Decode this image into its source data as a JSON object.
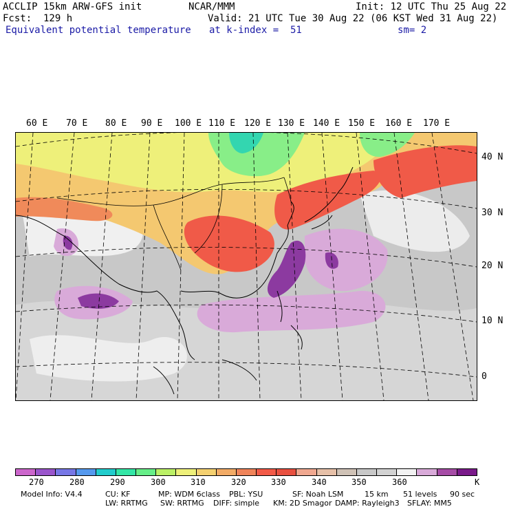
{
  "header": {
    "line1_left": "ACCLIP 15km ARW-GFS init",
    "line1_center": "NCAR/MMM",
    "line1_right": "Init: 12 UTC Thu 25 Aug 22",
    "line2_left": "Fcst:  129 h",
    "line2_right": "Valid: 21 UTC Tue 30 Aug 22 (06 KST Wed 31 Aug 22)",
    "line3_left": "Equivalent potential temperature",
    "line3_center": "at k-index =  51",
    "line3_right": "sm= 2"
  },
  "map": {
    "lon_labels": [
      "60 E",
      "70 E",
      "80 E",
      "90 E",
      "100 E",
      "110 E",
      "120 E",
      "130 E",
      "140 E",
      "150 E",
      "160 E",
      "170 E"
    ],
    "lat_labels": [
      "40 N",
      "30 N",
      "20 N",
      "10 N",
      "0"
    ],
    "field": "Equivalent potential temperature",
    "domain": "Asia / Western Pacific"
  },
  "colorbar": {
    "colors": [
      "#cc66cc",
      "#9a55cc",
      "#7777e6",
      "#5599ee",
      "#22cccc",
      "#33e6a6",
      "#66ee88",
      "#bbf066",
      "#eef07a",
      "#f4d070",
      "#f2ab66",
      "#f0845a",
      "#f25a48",
      "#e85040",
      "#f0a890",
      "#e6c0a8",
      "#cfc2b6",
      "#c8c8c8",
      "#d2d2d2",
      "#f2f2f2",
      "#d9aad9",
      "#a64ca6",
      "#7a1a8a"
    ],
    "tick_labels": [
      "270",
      "280",
      "290",
      "300",
      "310",
      "320",
      "330",
      "340",
      "350",
      "360",
      "K"
    ]
  },
  "footer": {
    "line1": [
      "Model Info: V4.4",
      "CU: KF",
      "MP: WDM 6class",
      "PBL: YSU",
      "SF: Noah LSM",
      "15 km",
      "51 levels",
      "90 sec"
    ],
    "line2": [
      "LW: RRTMG",
      "SW: RRTMG",
      "DIFF: simple",
      "KM: 2D Smagor",
      "DAMP: Rayleigh3",
      "SFLAY: MM5"
    ]
  }
}
